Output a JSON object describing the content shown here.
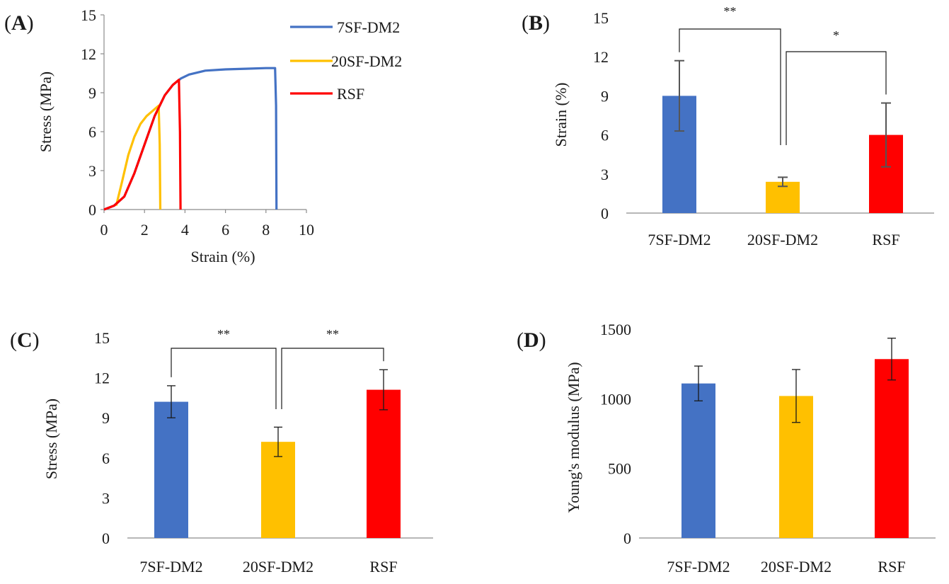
{
  "colors": {
    "7SF-DM2": "#4472C4",
    "20SF-DM2": "#FFC000",
    "RSF": "#FF0000"
  },
  "chart_data": [
    {
      "id": "A",
      "type": "line",
      "panel_label": "A",
      "title": "",
      "xlabel": "Strain (%)",
      "ylabel": "Stress (MPa)",
      "xlim": [
        0,
        10
      ],
      "ylim": [
        0,
        15
      ],
      "xticks": [
        "0",
        "2",
        "4",
        "6",
        "8",
        "10"
      ],
      "yticks": [
        "0",
        "3",
        "6",
        "9",
        "12",
        "15"
      ],
      "legend": [
        "7SF-DM2",
        "20SF-DM2",
        "RSF"
      ],
      "series": [
        {
          "name": "7SF-DM2",
          "color": "#4472C4",
          "x": [
            0,
            0.5,
            1.0,
            1.5,
            2.0,
            2.5,
            3.0,
            3.4,
            3.8,
            4.2,
            5.0,
            6.0,
            7.0,
            8.0,
            8.45,
            8.5,
            8.52
          ],
          "y": [
            0,
            0.3,
            1.0,
            2.8,
            5.0,
            7.2,
            8.8,
            9.6,
            10.1,
            10.4,
            10.7,
            10.8,
            10.85,
            10.9,
            10.9,
            8.0,
            0
          ]
        },
        {
          "name": "20SF-DM2",
          "color": "#FFC000",
          "x": [
            0.6,
            0.9,
            1.2,
            1.5,
            1.8,
            2.1,
            2.4,
            2.7,
            2.75,
            2.78
          ],
          "y": [
            0.3,
            2.2,
            4.2,
            5.6,
            6.6,
            7.2,
            7.6,
            8.0,
            5.0,
            0
          ]
        },
        {
          "name": "RSF",
          "color": "#FF0000",
          "x": [
            0,
            0.5,
            1.0,
            1.5,
            2.0,
            2.5,
            3.0,
            3.4,
            3.7,
            3.75,
            3.78
          ],
          "y": [
            0,
            0.3,
            1.0,
            2.8,
            5.0,
            7.2,
            8.8,
            9.6,
            10.0,
            6.0,
            0
          ]
        }
      ]
    },
    {
      "id": "B",
      "type": "bar",
      "panel_label": "B",
      "title": "",
      "xlabel": "",
      "ylabel": "Strain (%)",
      "ylim": [
        0,
        15
      ],
      "yticks": [
        "0",
        "3",
        "6",
        "9",
        "12",
        "15"
      ],
      "categories": [
        "7SF-DM2",
        "20SF-DM2",
        "RSF"
      ],
      "values": [
        9.0,
        2.4,
        6.0
      ],
      "errors": [
        2.7,
        0.35,
        2.45
      ],
      "significance": [
        {
          "from": 0,
          "to": 1,
          "label": "**"
        },
        {
          "from": 1,
          "to": 2,
          "label": "*"
        }
      ]
    },
    {
      "id": "C",
      "type": "bar",
      "panel_label": "C",
      "title": "",
      "xlabel": "",
      "ylabel": "Stress (MPa)",
      "ylim": [
        0,
        15
      ],
      "yticks": [
        "0",
        "3",
        "6",
        "9",
        "12",
        "15"
      ],
      "categories": [
        "7SF-DM2",
        "20SF-DM2",
        "RSF"
      ],
      "values": [
        10.2,
        7.2,
        11.1
      ],
      "errors": [
        1.2,
        1.1,
        1.5
      ],
      "significance": [
        {
          "from": 0,
          "to": 1,
          "label": "**"
        },
        {
          "from": 1,
          "to": 2,
          "label": "**"
        }
      ]
    },
    {
      "id": "D",
      "type": "bar",
      "panel_label": "D",
      "title": "",
      "xlabel": "",
      "ylabel": "Young's modulus (MPa)",
      "ylim": [
        0,
        1500
      ],
      "yticks": [
        "0",
        "500",
        "1000",
        "1500"
      ],
      "categories": [
        "7SF-DM2",
        "20SF-DM2",
        "RSF"
      ],
      "values": [
        1110,
        1020,
        1285
      ],
      "errors": [
        125,
        190,
        150
      ],
      "significance": []
    }
  ]
}
